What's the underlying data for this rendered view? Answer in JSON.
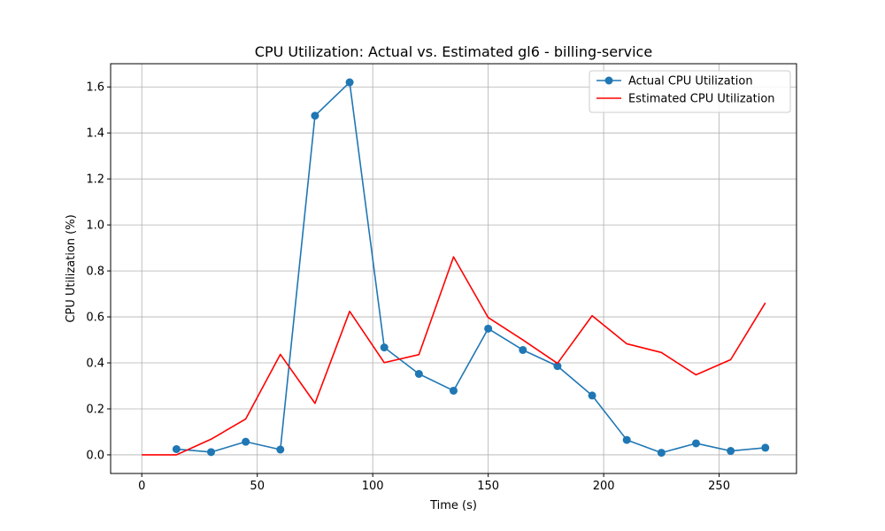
{
  "chart_data": {
    "type": "line",
    "title": "CPU Utilization: Actual vs. Estimated gl6 - billing-service",
    "xlabel": "Time (s)",
    "ylabel": "CPU Utilization (%)",
    "xlim": [
      -13.5,
      283.5
    ],
    "ylim": [
      -0.081,
      1.701
    ],
    "xticks": [
      0,
      50,
      100,
      150,
      200,
      250
    ],
    "yticks": [
      0.0,
      0.2,
      0.4,
      0.6,
      0.8,
      1.0,
      1.2,
      1.4,
      1.6
    ],
    "xtick_labels": [
      "0",
      "50",
      "100",
      "150",
      "200",
      "250"
    ],
    "ytick_labels": [
      "0.0",
      "0.2",
      "0.4",
      "0.6",
      "0.8",
      "1.0",
      "1.2",
      "1.4",
      "1.6"
    ],
    "grid": true,
    "legend_position": "top-right",
    "series": [
      {
        "name": "Actual CPU Utilization",
        "color": "#1f77b4",
        "marker": "circle",
        "x": [
          15,
          30,
          45,
          60,
          75,
          90,
          105,
          120,
          135,
          150,
          165,
          180,
          195,
          210,
          225,
          240,
          255,
          270
        ],
        "y": [
          0.025,
          0.012,
          0.057,
          0.023,
          1.475,
          1.62,
          0.467,
          0.352,
          0.279,
          0.549,
          0.456,
          0.386,
          0.258,
          0.065,
          0.009,
          0.05,
          0.017,
          0.031
        ]
      },
      {
        "name": "Estimated CPU Utilization",
        "color": "#ff0000",
        "marker": "none",
        "x": [
          0,
          15,
          30,
          45,
          60,
          75,
          90,
          105,
          120,
          135,
          150,
          165,
          180,
          195,
          210,
          225,
          240,
          255,
          270
        ],
        "y": [
          0.0,
          0.0,
          0.068,
          0.156,
          0.437,
          0.224,
          0.624,
          0.401,
          0.436,
          0.861,
          0.597,
          0.5,
          0.398,
          0.605,
          0.483,
          0.445,
          0.348,
          0.414,
          0.661
        ]
      }
    ]
  }
}
